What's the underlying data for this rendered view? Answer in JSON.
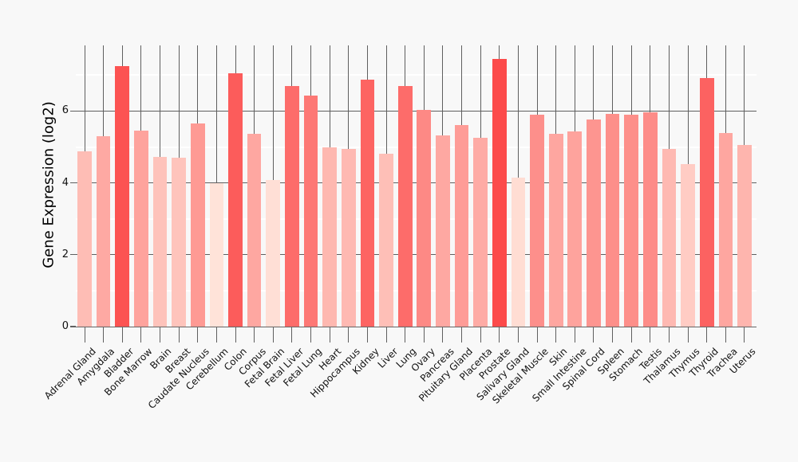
{
  "chart_data": {
    "type": "bar",
    "title": "",
    "xlabel": "",
    "ylabel": "Gene Expression (log2)",
    "categories": [
      "Adrenal Gland",
      "Amygdala",
      "Bladder",
      "Bone Marrow",
      "Brain",
      "Breast",
      "Caudate Nucleus",
      "Cerebellum",
      "Colon",
      "Corpus",
      "Fetal Brain",
      "Fetal Liver",
      "Fetal Lung",
      "Heart",
      "Hippocampus",
      "Kidney",
      "Liver",
      "Lung",
      "Ovary",
      "Pancreas",
      "Pituitary Gland",
      "Placenta",
      "Prostate",
      "Salivary Gland",
      "Skeletal Muscle",
      "Skin",
      "Small Intestine",
      "Spinal Cord",
      "Spleen",
      "Stomach",
      "Testis",
      "Thalamus",
      "Thymus",
      "Thyroid",
      "Trachea",
      "Uterus"
    ],
    "values": [
      4.87,
      5.31,
      7.26,
      5.45,
      4.73,
      4.7,
      5.66,
      4.0,
      7.05,
      5.36,
      4.08,
      6.69,
      6.43,
      4.98,
      4.94,
      6.88,
      4.82,
      6.69,
      6.04,
      5.33,
      5.6,
      5.26,
      7.46,
      4.14,
      5.89,
      5.37,
      5.44,
      5.76,
      5.91,
      5.9,
      5.97,
      4.94,
      4.52,
      6.91,
      5.39,
      5.05
    ],
    "y_ticks": [
      0,
      2,
      4,
      6
    ],
    "y_minor_gridlines": [
      1,
      3,
      5,
      7
    ],
    "ylim": [
      0,
      7.83
    ],
    "legend": "none",
    "grid": "one vertical gridline per category; gray major + white minor horizontal gridlines",
    "x_label_rotation_deg": 45,
    "colors": {
      "background": "#F8F8F8",
      "gridline": "#5F5F5F",
      "minor_gridline": "#FFFFFF",
      "axis_text": "#111111",
      "bar_scale_low_color": "#FFE3D9",
      "bar_scale_high_color": "#FC4A4A",
      "bar_scale_low_value": 4.0,
      "bar_scale_high_value": 7.46
    }
  }
}
